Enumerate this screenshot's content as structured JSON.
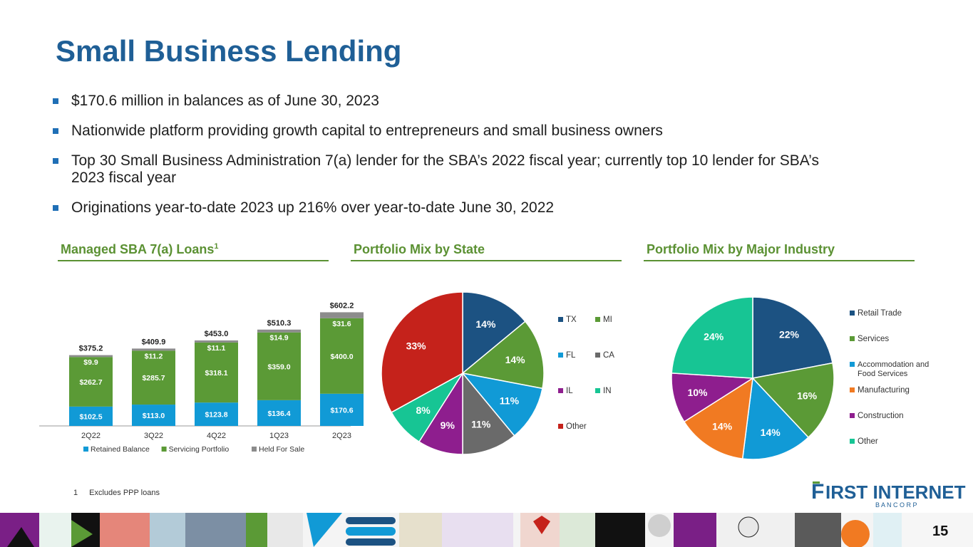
{
  "title": "Small Business Lending",
  "bullets": [
    "$170.6 million in balances as of June 30, 2023",
    "Nationwide platform providing growth capital to entrepreneurs and small business owners",
    "Top 30 Small Business Administration 7(a) lender for the SBA’s 2022 fiscal year; currently top 10 lender for SBA’s 2023 fiscal year",
    "Originations year-to-date 2023 up 216% over year-to-date June 30, 2022"
  ],
  "sections": {
    "loans": {
      "title": "Managed SBA 7(a) Loans",
      "sup": "1"
    },
    "state": {
      "title": "Portfolio Mix by State"
    },
    "industry": {
      "title": "Portfolio Mix by Major Industry"
    }
  },
  "footnote": {
    "number": "1",
    "text": "Excludes PPP loans"
  },
  "logo": {
    "name": "First Internet",
    "sub": "B A N C O R P"
  },
  "page_number": "15",
  "chart_data": [
    {
      "type": "bar",
      "stacked": true,
      "title": "Managed SBA 7(a) Loans",
      "categories": [
        "2Q22",
        "3Q22",
        "4Q22",
        "1Q23",
        "2Q23"
      ],
      "series": [
        {
          "name": "Retained Balance",
          "color": "#119ad6",
          "values": [
            102.5,
            113.0,
            123.8,
            136.4,
            170.6
          ],
          "labels": [
            "$102.5",
            "$113.0",
            "$123.8",
            "$136.4",
            "$170.6"
          ]
        },
        {
          "name": "Servicing Portfolio",
          "color": "#5b9a36",
          "values": [
            262.7,
            285.7,
            318.1,
            359.0,
            400.0
          ],
          "labels": [
            "$262.7",
            "$285.7",
            "$318.1",
            "$359.0",
            "$400.0"
          ]
        },
        {
          "name": "Held For Sale",
          "color": "#8c8c8c",
          "values": [
            9.9,
            11.2,
            11.1,
            14.9,
            31.6
          ],
          "labels": [
            "$9.9",
            "$11.2",
            "$11.1",
            "$14.9",
            "$31.6"
          ]
        }
      ],
      "totals": [
        "$375.2",
        "$409.9",
        "$453.0",
        "$510.3",
        "$602.2"
      ],
      "legend": "bottom"
    },
    {
      "type": "pie",
      "title": "Portfolio Mix by State",
      "slices": [
        {
          "label": "TX",
          "value": 14,
          "text": "14%",
          "color": "#1c5282"
        },
        {
          "label": "MI",
          "value": 14,
          "text": "14%",
          "color": "#5b9a36"
        },
        {
          "label": "FL",
          "value": 11,
          "text": "11%",
          "color": "#119ad6"
        },
        {
          "label": "CA",
          "value": 11,
          "text": "11%",
          "color": "#6a6a6a"
        },
        {
          "label": "IL",
          "value": 9,
          "text": "9%",
          "color": "#8e1e8e"
        },
        {
          "label": "IN",
          "value": 8,
          "text": "8%",
          "color": "#17c594"
        },
        {
          "label": "Other",
          "value": 33,
          "text": "33%",
          "color": "#c5221b"
        }
      ],
      "legend": "right"
    },
    {
      "type": "pie",
      "title": "Portfolio Mix by Major Industry",
      "slices": [
        {
          "label": "Retail Trade",
          "value": 22,
          "text": "22%",
          "color": "#1c5282"
        },
        {
          "label": "Services",
          "value": 16,
          "text": "16%",
          "color": "#5b9a36"
        },
        {
          "label": "Accommodation and Food Services",
          "value": 14,
          "text": "14%",
          "color": "#119ad6"
        },
        {
          "label": "Manufacturing",
          "value": 14,
          "text": "14%",
          "color": "#f17a22"
        },
        {
          "label": "Construction",
          "value": 10,
          "text": "10%",
          "color": "#8e1e8e"
        },
        {
          "label": "Other",
          "value": 24,
          "text": "24%",
          "color": "#17c594"
        }
      ],
      "legend": "right"
    }
  ]
}
